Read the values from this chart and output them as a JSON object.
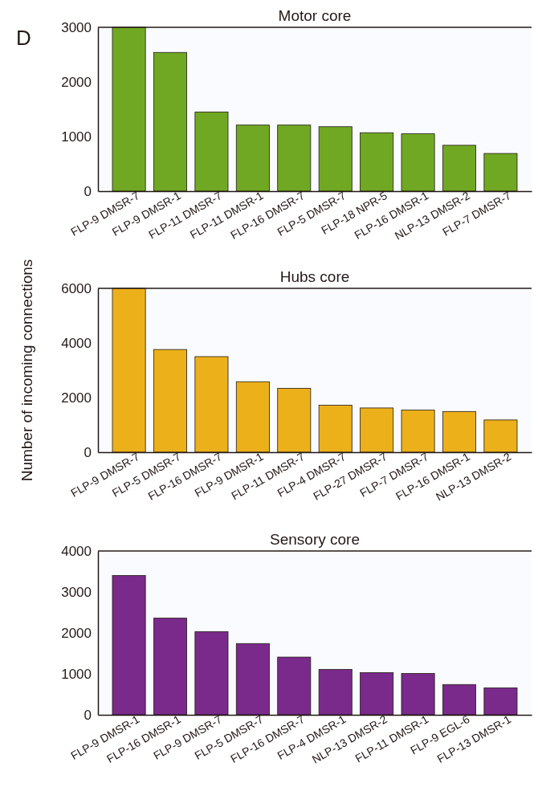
{
  "chart_data": [
    {
      "type": "bar",
      "title": "Motor core",
      "annotations": [
        "D"
      ],
      "categories": [
        "FLP-9 DMSR-7",
        "FLP-9 DMSR-1",
        "FLP-11 DMSR-7",
        "FLP-11 DMSR-1",
        "FLP-16 DMSR-7",
        "FLP-5 DMSR-7",
        "FLP-18 NPR-5",
        "FLP-16 DMSR-1",
        "NLP-13 DMSR-2",
        "FLP-7 DMSR-7"
      ],
      "values": [
        3000,
        2540,
        1450,
        1210,
        1210,
        1180,
        1070,
        1050,
        840,
        690
      ],
      "color": "#70a823",
      "ylim": [
        0,
        3000
      ],
      "yticks": [
        0,
        1000,
        2000,
        3000
      ]
    },
    {
      "type": "bar",
      "title": "Hubs core",
      "ylabel": "Number of incoming connections",
      "categories": [
        "FLP-9 DMSR-7",
        "FLP-5 DMSR-7",
        "FLP-16 DMSR-7",
        "FLP-9 DMSR-1",
        "FLP-11 DMSR-7",
        "FLP-4 DMSR-7",
        "FLP-27 DMSR-7",
        "FLP-7 DMSR-7",
        "FLP-16 DMSR-1",
        "NLP-13 DMSR-2"
      ],
      "values": [
        6000,
        3760,
        3500,
        2580,
        2340,
        1720,
        1620,
        1540,
        1490,
        1180
      ],
      "color": "#ecb11a",
      "ylim": [
        0,
        6000
      ],
      "yticks": [
        0,
        2000,
        4000,
        6000
      ]
    },
    {
      "type": "bar",
      "title": "Sensory core",
      "categories": [
        "FLP-9 DMSR-1",
        "FLP-16 DMSR-1",
        "FLP-9 DMSR-7",
        "FLP-5 DMSR-7",
        "FLP-16 DMSR-7",
        "FLP-4 DMSR-1",
        "NLP-13 DMSR-2",
        "FLP-11 DMSR-1",
        "FLP-9 EGL-6",
        "FLP-13 DMSR-1"
      ],
      "values": [
        3400,
        2360,
        2030,
        1740,
        1410,
        1110,
        1030,
        1010,
        740,
        660
      ],
      "color": "#792a8a",
      "ylim": [
        0,
        4000
      ],
      "yticks": [
        0,
        1000,
        2000,
        3000,
        4000
      ]
    }
  ]
}
